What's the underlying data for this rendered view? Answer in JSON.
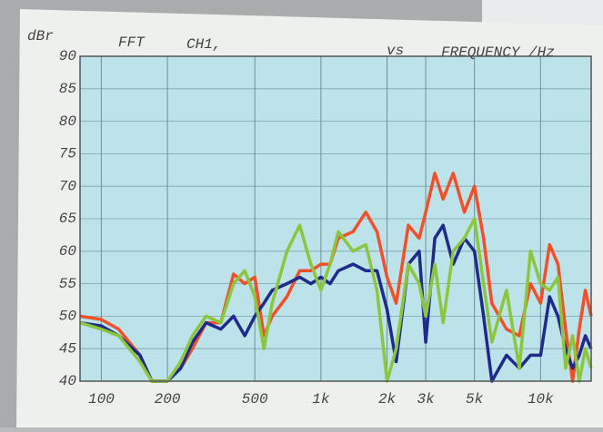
{
  "chart_data": {
    "type": "line",
    "log_x": true,
    "grid": true,
    "ylabel": "dBr",
    "title_parts": [
      "FFT",
      "CH1,",
      "vs",
      "FREQUENCY /Hz"
    ],
    "xlim": [
      80,
      17000
    ],
    "ylim": [
      40,
      90
    ],
    "yticks": [
      40,
      45,
      50,
      55,
      60,
      65,
      70,
      75,
      80,
      85,
      90
    ],
    "xticks": [
      100,
      200,
      500,
      {
        "value": 1000,
        "label": "1k"
      },
      {
        "value": 2000,
        "label": "2k"
      },
      {
        "value": 3000,
        "label": "3k"
      },
      {
        "value": 5000,
        "label": "5k"
      },
      {
        "value": 10000,
        "label": "10k"
      }
    ],
    "x": [
      80,
      100,
      120,
      150,
      170,
      200,
      230,
      260,
      300,
      350,
      400,
      450,
      500,
      550,
      600,
      700,
      800,
      900,
      1000,
      1100,
      1200,
      1400,
      1600,
      1800,
      2000,
      2200,
      2500,
      2800,
      3000,
      3300,
      3600,
      4000,
      4500,
      5000,
      5500,
      6000,
      7000,
      8000,
      9000,
      10000,
      11000,
      12000,
      13000,
      14000,
      15000,
      16000,
      17000
    ],
    "series": [
      {
        "color": "#f2502a",
        "values": [
          50,
          49.5,
          48,
          44,
          40,
          40,
          42,
          45,
          49,
          49,
          56.5,
          55,
          56,
          47,
          50,
          53,
          57,
          57,
          58,
          58,
          62,
          63,
          66,
          63,
          56,
          52,
          64,
          62,
          66,
          72,
          68,
          72,
          66,
          70,
          62,
          52,
          48,
          47,
          55,
          52,
          61,
          58,
          48,
          40,
          48,
          54,
          50
        ]
      },
      {
        "color": "#1f2a8a",
        "values": [
          49,
          48.5,
          47,
          44,
          40,
          40,
          42,
          46,
          49,
          48,
          50,
          47,
          50,
          52,
          54,
          55,
          56,
          55,
          56,
          55,
          57,
          58,
          57,
          57,
          51,
          43,
          58,
          60,
          46,
          62,
          64,
          58,
          62,
          60,
          50,
          40,
          44,
          42,
          44,
          44,
          53,
          50,
          45,
          42,
          44,
          47,
          45
        ]
      },
      {
        "color": "#8cc63f",
        "values": [
          49,
          48,
          47,
          43,
          40,
          40,
          43,
          47,
          50,
          49,
          55,
          57,
          53,
          45,
          52,
          60,
          64,
          58,
          54,
          58,
          63,
          60,
          61,
          54,
          40,
          45,
          58,
          55,
          50,
          58,
          49,
          60,
          62,
          65,
          55,
          46,
          54,
          42,
          60,
          55,
          54,
          56,
          42,
          47,
          40,
          45,
          42
        ]
      }
    ]
  }
}
